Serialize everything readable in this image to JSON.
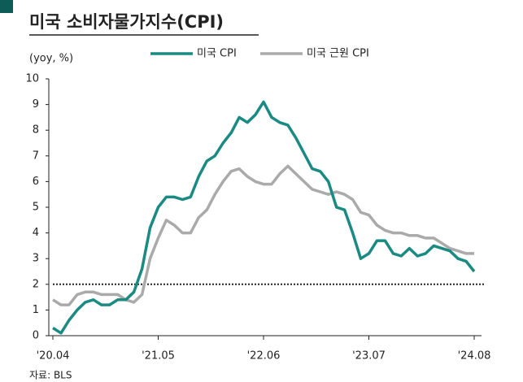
{
  "chart_data": {
    "type": "line",
    "title": "미국 소비자물가지수(CPI)",
    "y_label": "(yoy, %)",
    "source": "자료: BLS",
    "categories": [
      "'20.04",
      null,
      null,
      null,
      null,
      null,
      null,
      null,
      null,
      null,
      null,
      null,
      null,
      "'21.05",
      null,
      null,
      null,
      null,
      null,
      null,
      null,
      null,
      null,
      null,
      null,
      null,
      "'22.06",
      null,
      null,
      null,
      null,
      null,
      null,
      null,
      null,
      null,
      null,
      null,
      null,
      "'23.07",
      null,
      null,
      null,
      null,
      null,
      null,
      null,
      null,
      null,
      null,
      null,
      null,
      "'24.08"
    ],
    "series": [
      {
        "name": "미국 CPI",
        "color": "#1a8a82",
        "values": [
          0.3,
          0.1,
          0.6,
          1.0,
          1.3,
          1.4,
          1.2,
          1.2,
          1.4,
          1.4,
          1.7,
          2.6,
          4.2,
          5.0,
          5.4,
          5.4,
          5.3,
          5.4,
          6.2,
          6.8,
          7.0,
          7.5,
          7.9,
          8.5,
          8.3,
          8.6,
          9.1,
          8.5,
          8.3,
          8.2,
          7.7,
          7.1,
          6.5,
          6.4,
          6.0,
          5.0,
          4.9,
          4.0,
          3.0,
          3.2,
          3.7,
          3.7,
          3.2,
          3.1,
          3.4,
          3.1,
          3.2,
          3.5,
          3.4,
          3.3,
          3.0,
          2.9,
          2.5
        ]
      },
      {
        "name": "미국 근원 CPI",
        "color": "#aaaaaa",
        "values": [
          1.4,
          1.2,
          1.2,
          1.6,
          1.7,
          1.7,
          1.6,
          1.6,
          1.6,
          1.4,
          1.3,
          1.6,
          3.0,
          3.8,
          4.5,
          4.3,
          4.0,
          4.0,
          4.6,
          4.9,
          5.5,
          6.0,
          6.4,
          6.5,
          6.2,
          6.0,
          5.9,
          5.9,
          6.3,
          6.6,
          6.3,
          6.0,
          5.7,
          5.6,
          5.5,
          5.6,
          5.5,
          5.3,
          4.8,
          4.7,
          4.3,
          4.1,
          4.0,
          4.0,
          3.9,
          3.9,
          3.8,
          3.8,
          3.6,
          3.4,
          3.3,
          3.2,
          3.2
        ]
      }
    ],
    "ylim": [
      0,
      10
    ],
    "yticks": [
      0,
      1,
      2,
      3,
      4,
      5,
      6,
      7,
      8,
      9,
      10
    ],
    "reference_line": 2,
    "legend": "top"
  }
}
